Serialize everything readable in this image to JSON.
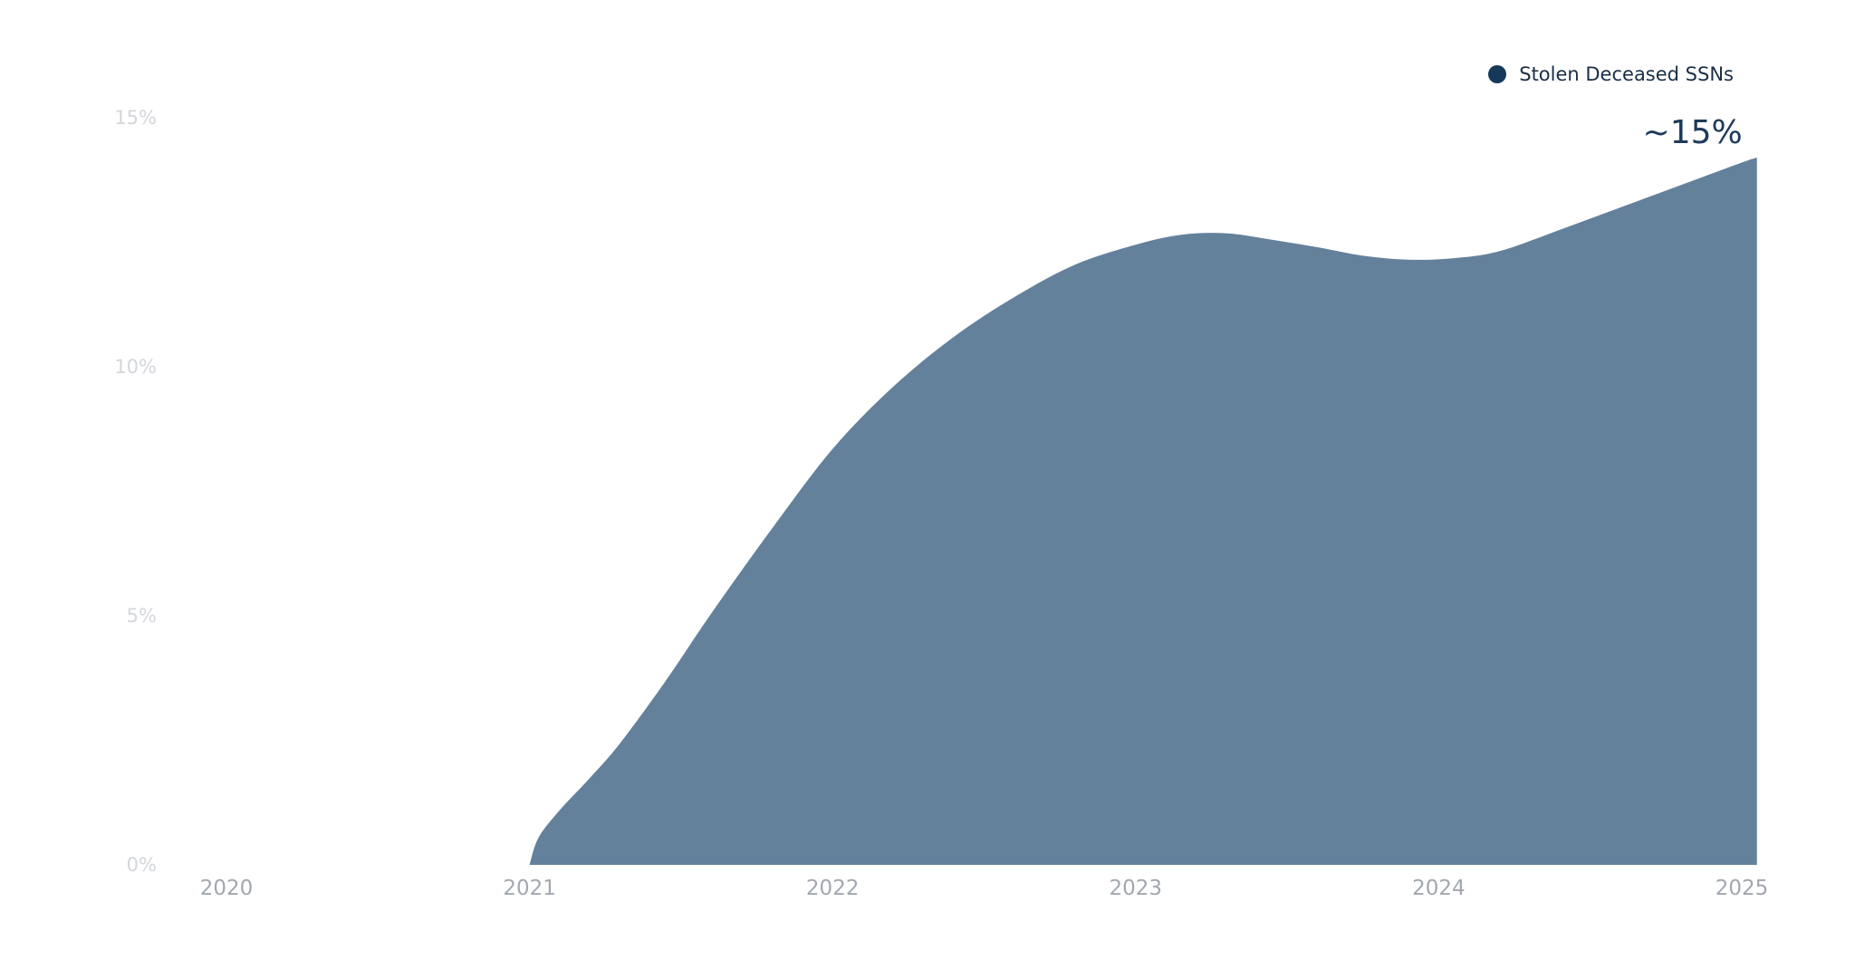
{
  "chart_data": {
    "type": "area",
    "title": "",
    "xlabel": "",
    "ylabel": "",
    "x_ticks": [
      "2020",
      "2021",
      "2022",
      "2023",
      "2024",
      "2025"
    ],
    "y_ticks": [
      "0%",
      "5%",
      "10%",
      "15%"
    ],
    "xlim": [
      2020,
      2025.05
    ],
    "ylim": [
      0,
      15
    ],
    "grid": false,
    "legend_position": "top-right",
    "series": [
      {
        "name": "Stolen Deceased SSNs",
        "color": "#16395a",
        "fill_color": "#64819c",
        "x": [
          2021.0,
          2021.03,
          2021.1,
          2021.2,
          2021.3,
          2021.45,
          2021.6,
          2021.8,
          2022.0,
          2022.2,
          2022.4,
          2022.6,
          2022.8,
          2023.0,
          2023.15,
          2023.3,
          2023.45,
          2023.6,
          2023.75,
          2023.9,
          2024.05,
          2024.2,
          2024.4,
          2024.6,
          2024.8,
          2025.0,
          2025.05
        ],
        "y": [
          0.0,
          0.55,
          1.1,
          1.75,
          2.45,
          3.7,
          5.05,
          6.75,
          8.35,
          9.6,
          10.6,
          11.4,
          12.05,
          12.45,
          12.65,
          12.68,
          12.55,
          12.4,
          12.23,
          12.15,
          12.18,
          12.32,
          12.75,
          13.2,
          13.65,
          14.1,
          14.2
        ]
      }
    ],
    "annotations": [
      {
        "text": "~15%",
        "x": 2025.05,
        "y": 14.2
      }
    ]
  }
}
